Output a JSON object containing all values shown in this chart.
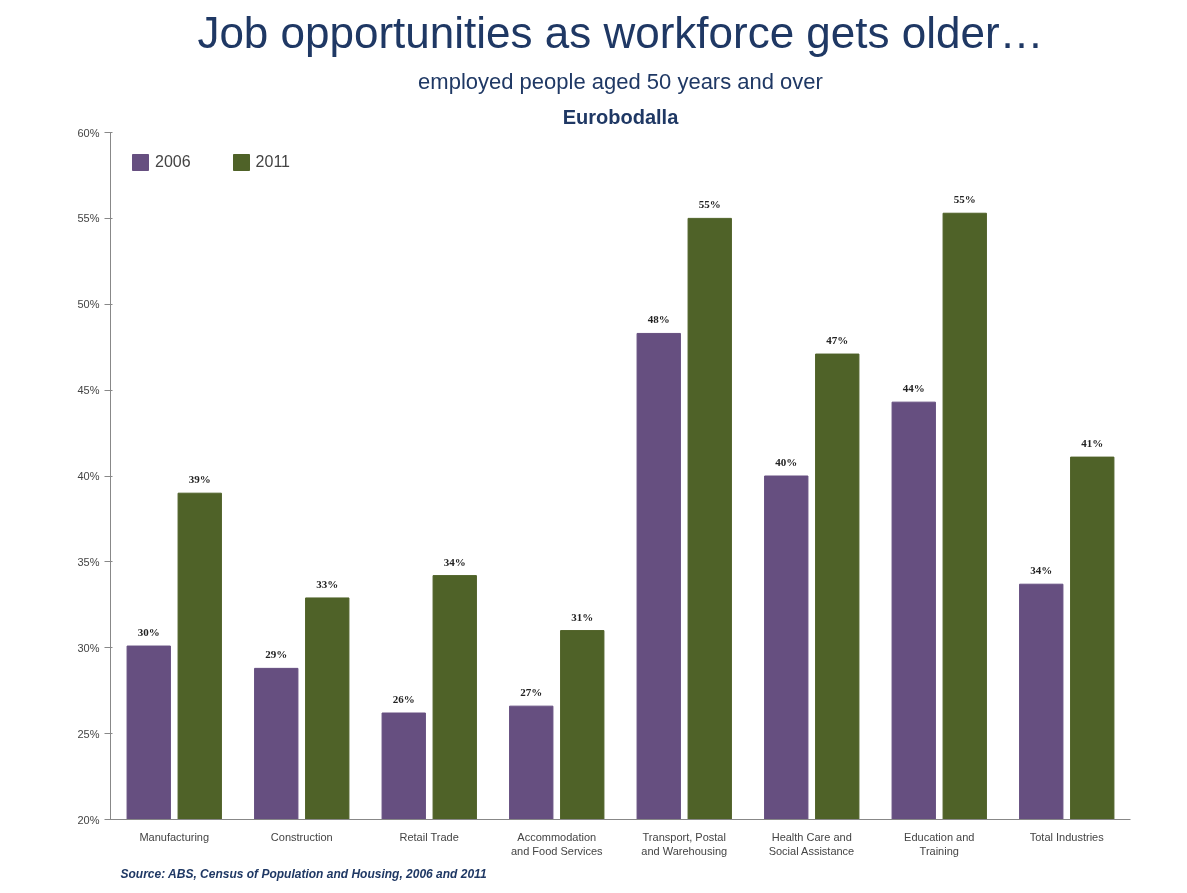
{
  "chart_data": {
    "type": "bar",
    "title": "Job opportunities as workforce gets older…",
    "subtitle": "employed people aged 50 years and over",
    "annotations": [
      "Eurobodalla",
      "Source: ABS, Census of Population and Housing,  2006 and 2011"
    ],
    "categories": [
      "Manufacturing",
      "Construction",
      "Retail Trade",
      "Accommodation\nand Food Services",
      "Transport, Postal\nand Warehousing",
      "Health Care and\nSocial Assistance",
      "Education and\nTraining",
      "Total Industries"
    ],
    "series": [
      {
        "name": "2006",
        "color": "#664f80",
        "values": [
          30.1,
          28.8,
          26.2,
          26.6,
          48.3,
          40.0,
          44.3,
          33.7
        ],
        "value_labels": [
          "30%",
          "29%",
          "26%",
          "27%",
          "48%",
          "40%",
          "44%",
          "34%"
        ]
      },
      {
        "name": "2011",
        "color": "#4f6228",
        "values": [
          39.0,
          32.9,
          34.2,
          31.0,
          55.0,
          47.1,
          55.3,
          41.1
        ],
        "value_labels": [
          "39%",
          "33%",
          "34%",
          "31%",
          "55%",
          "47%",
          "55%",
          "41%"
        ]
      }
    ],
    "ylim": [
      20,
      60
    ],
    "yticks": [
      {
        "value": 20,
        "label": "20%"
      },
      {
        "value": 25,
        "label": "25%"
      },
      {
        "value": 30,
        "label": "30%"
      },
      {
        "value": 35,
        "label": "35%"
      },
      {
        "value": 40,
        "label": "40%"
      },
      {
        "value": 45,
        "label": "45%"
      },
      {
        "value": 50,
        "label": "50%"
      },
      {
        "value": 55,
        "label": "55%"
      },
      {
        "value": 60,
        "label": "60%"
      }
    ],
    "grid": false,
    "legend": "top left"
  }
}
